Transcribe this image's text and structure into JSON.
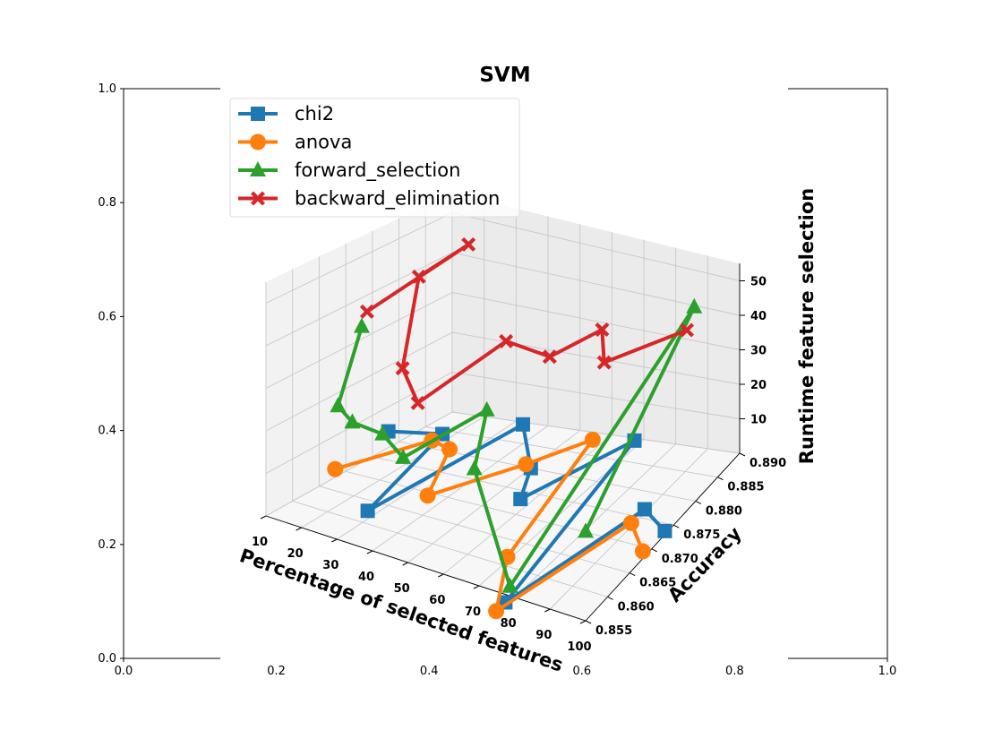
{
  "chart_data": {
    "type": "line",
    "title": "SVM",
    "xlabel": "Percentage of selected features",
    "ylabel": "Accuracy",
    "zlabel": "Runtime feature selection",
    "x_ticks": [
      "10",
      "20",
      "30",
      "40",
      "50",
      "60",
      "70",
      "80",
      "90",
      "100"
    ],
    "y_ticks": [
      "0.855",
      "0.860",
      "0.865",
      "0.870",
      "0.875",
      "0.880",
      "0.885",
      "0.890"
    ],
    "z_ticks": [
      "10",
      "20",
      "30",
      "40",
      "50"
    ],
    "outer_x_ticks": [
      "0.0",
      "0.2",
      "0.4",
      "0.6",
      "0.8",
      "1.0"
    ],
    "outer_y_ticks": [
      "0.0",
      "0.2",
      "0.4",
      "0.6",
      "0.8",
      "1.0"
    ],
    "xlim": [
      10,
      100
    ],
    "ylim": [
      0.855,
      0.89
    ],
    "zlim": [
      0,
      55
    ],
    "grid": true,
    "legend_position": "upper-left",
    "series": [
      {
        "name": "chi2",
        "color": "#1f77b4",
        "marker": "square",
        "points": [
          {
            "x": 10,
            "y": 0.878,
            "z": 4
          },
          {
            "x": 20,
            "y": 0.882,
            "z": 2
          },
          {
            "x": 30,
            "y": 0.861,
            "z": 2
          },
          {
            "x": 40,
            "y": 0.885,
            "z": 5
          },
          {
            "x": 50,
            "y": 0.88,
            "z": 0
          },
          {
            "x": 60,
            "y": 0.871,
            "z": 3
          },
          {
            "x": 70,
            "y": 0.888,
            "z": 2
          },
          {
            "x": 80,
            "y": 0.853,
            "z": 1
          },
          {
            "x": 90,
            "y": 0.876,
            "z": 1
          },
          {
            "x": 100,
            "y": 0.873,
            "z": 1
          }
        ]
      },
      {
        "name": "anova",
        "color": "#ff7f0e",
        "marker": "circle",
        "points": [
          {
            "x": 10,
            "y": 0.868,
            "z": 2
          },
          {
            "x": 20,
            "y": 0.88,
            "z": 2
          },
          {
            "x": 30,
            "y": 0.877,
            "z": 4
          },
          {
            "x": 40,
            "y": 0.866,
            "z": 4
          },
          {
            "x": 50,
            "y": 0.879,
            "z": 2
          },
          {
            "x": 60,
            "y": 0.886,
            "z": 3
          },
          {
            "x": 70,
            "y": 0.861,
            "z": 1
          },
          {
            "x": 80,
            "y": 0.851,
            "z": 1
          },
          {
            "x": 90,
            "y": 0.873,
            "z": 1
          },
          {
            "x": 100,
            "y": 0.868,
            "z": 2
          }
        ]
      },
      {
        "name": "forward_selection",
        "color": "#2ca02c",
        "marker": "triangle",
        "points": [
          {
            "x": 10,
            "y": 0.873,
            "z": 33
          },
          {
            "x": 20,
            "y": 0.862,
            "z": 24
          },
          {
            "x": 30,
            "y": 0.858,
            "z": 26
          },
          {
            "x": 40,
            "y": 0.857,
            "z": 27
          },
          {
            "x": 50,
            "y": 0.854,
            "z": 27
          },
          {
            "x": 60,
            "y": 0.864,
            "z": 33
          },
          {
            "x": 70,
            "y": 0.854,
            "z": 31
          },
          {
            "x": 80,
            "y": 0.854,
            "z": 4
          },
          {
            "x": 90,
            "y": 0.887,
            "z": 44
          },
          {
            "x": 100,
            "y": 0.855,
            "z": 24
          }
        ]
      },
      {
        "name": "backward_elimination",
        "color": "#d62728",
        "marker": "x",
        "points": [
          {
            "x": 10,
            "y": 0.874,
            "z": 36
          },
          {
            "x": 20,
            "y": 0.887,
            "z": 46
          },
          {
            "x": 30,
            "y": 0.871,
            "z": 52
          },
          {
            "x": 40,
            "y": 0.861,
            "z": 40
          },
          {
            "x": 50,
            "y": 0.857,
            "z": 38
          },
          {
            "x": 60,
            "y": 0.868,
            "z": 47
          },
          {
            "x": 70,
            "y": 0.87,
            "z": 44
          },
          {
            "x": 80,
            "y": 0.874,
            "z": 50
          },
          {
            "x": 90,
            "y": 0.867,
            "z": 52
          },
          {
            "x": 100,
            "y": 0.878,
            "z": 51
          }
        ]
      }
    ]
  }
}
